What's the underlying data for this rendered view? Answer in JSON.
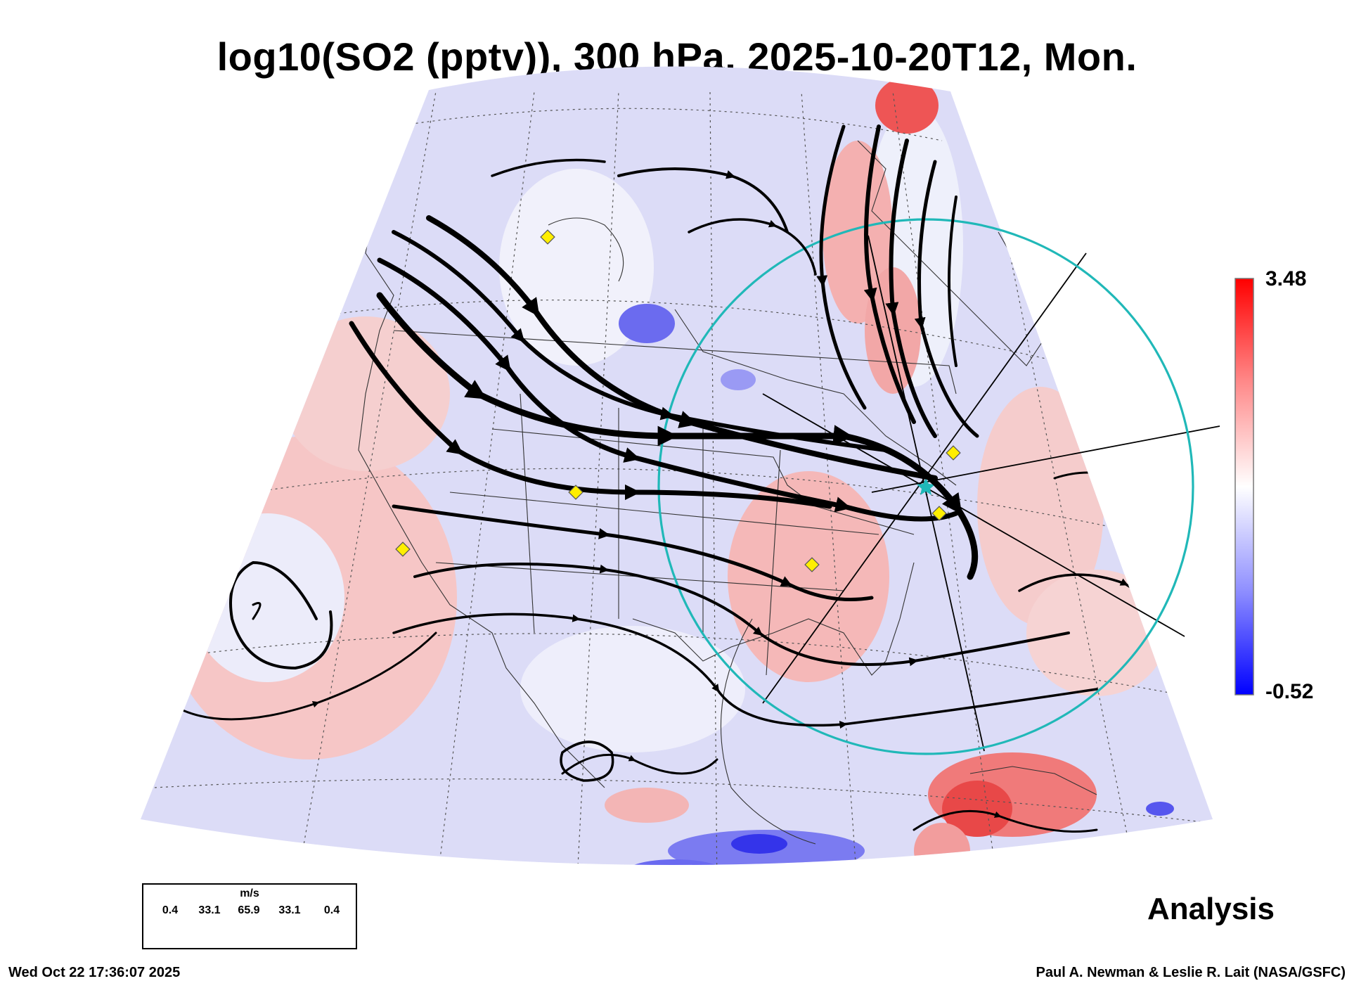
{
  "title": "log10(SO2 (pptv)), 300 hPa, 2025-10-20T12, Mon.",
  "colorbar": {
    "max_label": "3.48",
    "min_label": "-0.52",
    "colors": {
      "high": "#ff0000",
      "mid": "#ffffff",
      "low": "#0000ff"
    }
  },
  "legend": {
    "unit": "m/s",
    "values": [
      "0.4",
      "33.1",
      "65.9",
      "33.1",
      "0.4"
    ]
  },
  "stamp": "Analysis",
  "footer": {
    "timestamp": "Wed Oct 22 17:36:07 2025",
    "credit": "Paul A. Newman & Leslie R. Lait (NASA/GSFC)"
  },
  "map": {
    "projection": "conic",
    "field": "SO2 concentration at 300 hPa",
    "overlays": [
      "wind streamlines",
      "state and country boundaries",
      "range circle",
      "cross-section lines",
      "site markers"
    ],
    "colors": {
      "circle": "#20b8b8",
      "marker": "#ffee00",
      "stream": "#000000"
    }
  }
}
